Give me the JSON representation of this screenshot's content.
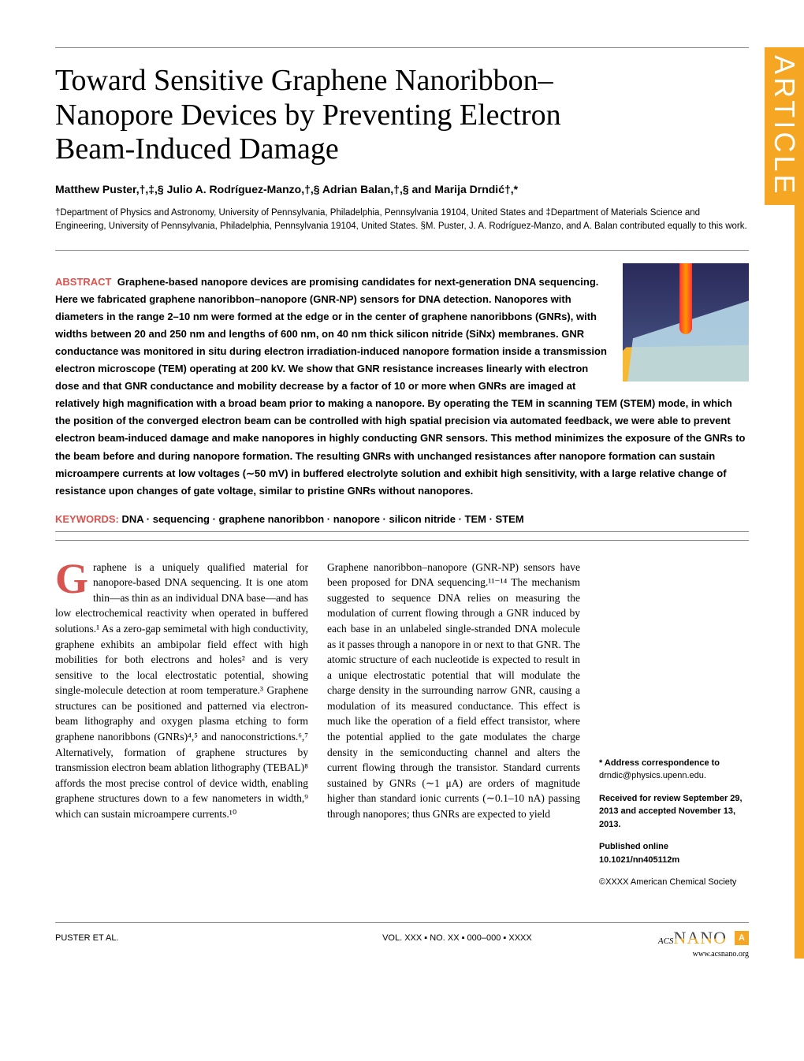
{
  "tab_label": "ARTICLE",
  "title": "Toward Sensitive Graphene Nanoribbon–Nanopore Devices by Preventing Electron Beam-Induced Damage",
  "authors": "Matthew Puster,†,‡,§ Julio A. Rodríguez-Manzo,†,§ Adrian Balan,†,§ and Marija Drndić†,*",
  "affiliations": "†Department of Physics and Astronomy, University of Pennsylvania, Philadelphia, Pennsylvania 19104, United States and ‡Department of Materials Science and Engineering, University of Pennsylvania, Philadelphia, Pennsylvania 19104, United States. §M. Puster, J. A. Rodríguez-Manzo, and A. Balan contributed equally to this work.",
  "abstract_label": "ABSTRACT",
  "abstract_text": "Graphene-based nanopore devices are promising candidates for next-generation DNA sequencing. Here we fabricated graphene nanoribbon–nanopore (GNR-NP) sensors for DNA detection. Nanopores with diameters in the range 2–10 nm were formed at the edge or in the center of graphene nanoribbons (GNRs), with widths between 20 and 250 nm and lengths of 600 nm, on 40 nm thick silicon nitride (SiNx) membranes. GNR conductance was monitored in situ during electron irradiation-induced nanopore formation inside a transmission electron microscope (TEM) operating at 200 kV. We show that GNR resistance increases linearly with electron dose and that GNR conductance and mobility decrease by a factor of 10 or more when GNRs are imaged at relatively high magnification with a broad beam prior to making a nanopore. By operating the TEM in scanning TEM (STEM) mode, in which the position of the converged electron beam can be controlled with high spatial precision via automated feedback, we were able to prevent electron beam-induced damage and make nanopores in highly conducting GNR sensors. This method minimizes the exposure of the GNRs to the beam before and during nanopore formation. The resulting GNRs with unchanged resistances after nanopore formation can sustain microampere currents at low voltages (∼50 mV) in buffered electrolyte solution and exhibit high sensitivity, with a large relative change of resistance upon changes of gate voltage, similar to pristine GNRs without nanopores.",
  "keywords_label": "KEYWORDS:",
  "keywords_text": "DNA · sequencing · graphene nanoribbon · nanopore · silicon nitride · TEM · STEM",
  "col_left_first": "raphene is a uniquely qualified material for nanopore-based DNA sequencing. It is one atom thin—as thin as an individual DNA base—and has low electrochemical reactivity when operated in buffered solutions.¹ As a zero-gap semimetal with high conductivity, graphene exhibits an ambipolar field effect with high mobilities for both electrons and holes² and is very sensitive to the local electrostatic potential, showing single-molecule detection at room temperature.³ Graphene structures can be positioned and patterned via electron-beam lithography and oxygen plasma etching to form graphene nanoribbons (GNRs)⁴,⁵ and nanoconstrictions.⁶,⁷ Alternatively, formation of graphene structures by transmission electron beam ablation lithography (TEBAL)⁸ affords the most precise control of device width, enabling graphene structures down to a few nanometers in width,⁹ which can sustain microampere currents.¹⁰",
  "col_mid": "Graphene nanoribbon–nanopore (GNR-NP) sensors have been proposed for DNA sequencing.¹¹⁻¹⁴ The mechanism suggested to sequence DNA relies on measuring the modulation of current flowing through a GNR induced by each base in an unlabeled single-stranded DNA molecule as it passes through a nanopore in or next to that GNR. The atomic structure of each nucleotide is expected to result in a unique electrostatic potential that will modulate the charge density in the surrounding narrow GNR, causing a modulation of its measured conductance. This effect is much like the operation of a field effect transistor, where the potential applied to the gate modulates the charge density in the semiconducting channel and alters the current flowing through the transistor. Standard currents sustained by GNRs (∼1 μA) are orders of magnitude higher than standard ionic currents (∼0.1–10 nA) passing through nanopores; thus GNRs are expected to yield",
  "sidebar": {
    "correspondence_label": "* Address correspondence to",
    "correspondence_email": "drndic@physics.upenn.edu.",
    "received": "Received for review September 29, 2013 and accepted November 13, 2013.",
    "published_label": "Published online",
    "doi": "10.1021/nn405112m",
    "copyright": "©XXXX American Chemical Society"
  },
  "footer": {
    "left": "PUSTER ET AL.",
    "mid": "VOL. XXX ▪ NO. XX ▪ 000–000 ▪ XXXX",
    "logo_pre": "ACS",
    "logo_main": "NANO",
    "page_letter": "A",
    "url": "www.acsnano.org"
  }
}
